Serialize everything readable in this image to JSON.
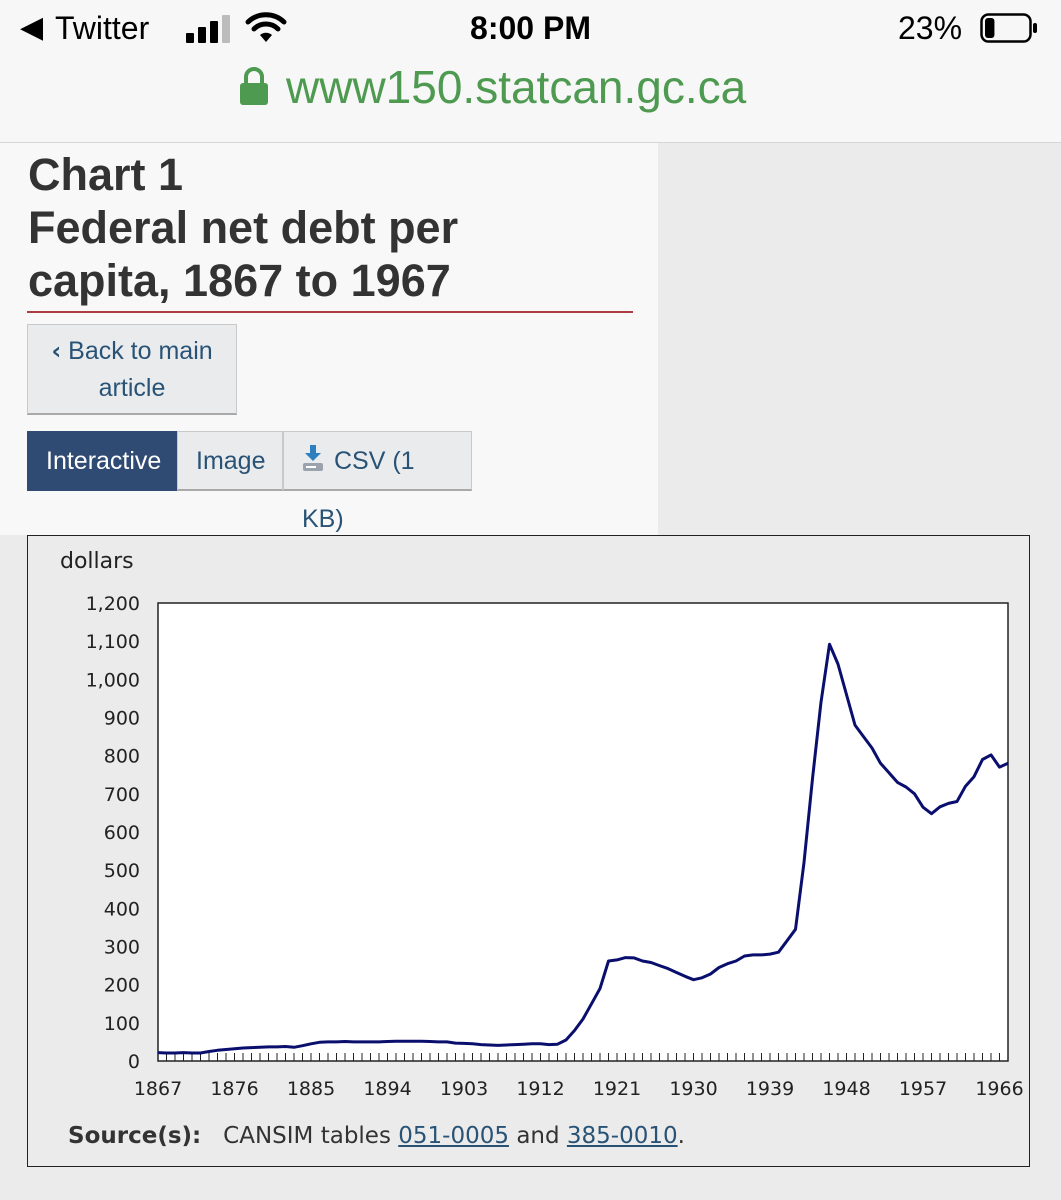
{
  "status_bar": {
    "back_app": "Twitter",
    "time": "8:00 PM",
    "battery_percent": "23%",
    "battery_level": 0.23
  },
  "url_bar": {
    "url": "www150.statcan.gc.ca"
  },
  "page": {
    "title_line1": "Chart 1",
    "title_line2": "Federal net debt per",
    "title_line3": "capita, 1867 to 1967",
    "back_button_line1": "Back to main",
    "back_button_line2": "article",
    "tabs": [
      {
        "label": "Interactive",
        "active": true
      },
      {
        "label": "Image",
        "active": false
      },
      {
        "label": "CSV (1 KB)",
        "active": false
      }
    ],
    "source_label": "Source(s):",
    "source_prefix": "CANSIM tables",
    "source_link1": "051-0005",
    "source_mid": "and",
    "source_link2": "385-0010",
    "source_suffix": "."
  },
  "chart_data": {
    "type": "line",
    "title": "",
    "xlabel": "",
    "ylabel": "dollars",
    "xlim": [
      1867,
      1967
    ],
    "ylim": [
      0,
      1200
    ],
    "x_ticks": [
      1867,
      1876,
      1885,
      1894,
      1903,
      1912,
      1921,
      1930,
      1939,
      1948,
      1957,
      1966
    ],
    "y_ticks": [
      0,
      100,
      200,
      300,
      400,
      500,
      600,
      700,
      800,
      900,
      1000,
      1100,
      1200
    ],
    "y_tick_labels": [
      "0",
      "100",
      "200",
      "300",
      "400",
      "500",
      "600",
      "700",
      "800",
      "900",
      "1,000",
      "1,100",
      "1,200"
    ],
    "color": "#0a0f6e",
    "grid": false,
    "series": [
      {
        "x": [
          1867,
          1868,
          1869,
          1870,
          1871,
          1872,
          1873,
          1874,
          1875,
          1876,
          1877,
          1878,
          1879,
          1880,
          1881,
          1882,
          1883,
          1884,
          1885,
          1886,
          1887,
          1888,
          1889,
          1890,
          1891,
          1892,
          1893,
          1894,
          1895,
          1896,
          1897,
          1898,
          1899,
          1900,
          1901,
          1902,
          1903,
          1904,
          1905,
          1906,
          1907,
          1908,
          1909,
          1910,
          1911,
          1912,
          1913,
          1914,
          1915,
          1916,
          1917,
          1918,
          1919,
          1920,
          1921,
          1922,
          1923,
          1924,
          1925,
          1926,
          1927,
          1928,
          1929,
          1930,
          1931,
          1932,
          1933,
          1934,
          1935,
          1936,
          1937,
          1938,
          1939,
          1940,
          1941,
          1942,
          1943,
          1944,
          1945,
          1946,
          1947,
          1948,
          1949,
          1950,
          1951,
          1952,
          1953,
          1954,
          1955,
          1956,
          1957,
          1958,
          1959,
          1960,
          1961,
          1962,
          1963,
          1964,
          1965,
          1966,
          1967
        ],
        "values": [
          22,
          21,
          21,
          22,
          21,
          21,
          25,
          28,
          30,
          32,
          34,
          35,
          36,
          37,
          37,
          38,
          36,
          40,
          45,
          49,
          50,
          50,
          51,
          50,
          50,
          50,
          50,
          51,
          52,
          52,
          52,
          52,
          51,
          50,
          50,
          47,
          46,
          45,
          43,
          42,
          41,
          42,
          43,
          44,
          45,
          45,
          43,
          44,
          55,
          80,
          110,
          150,
          190,
          262,
          265,
          271,
          270,
          262,
          258,
          250,
          242,
          232,
          222,
          213,
          218,
          228,
          245,
          255,
          262,
          275,
          278,
          278,
          280,
          285,
          315,
          345,
          520,
          740,
          940,
          1092,
          1040,
          960,
          880,
          850,
          820,
          780,
          755,
          730,
          718,
          700,
          665,
          648,
          666,
          675,
          680,
          720,
          745,
          790,
          802,
          770,
          780
        ]
      }
    ]
  }
}
